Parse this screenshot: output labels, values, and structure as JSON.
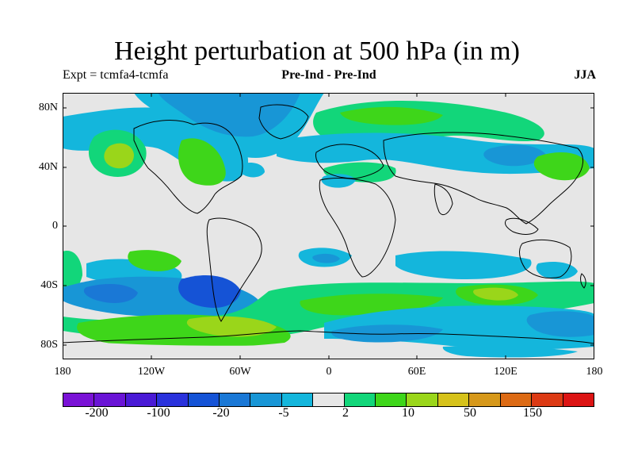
{
  "title": "Height perturbation at 500 hPa (in m)",
  "subtitle_left": "Expt = tcmfa4-tcmfa",
  "subtitle_center": "Pre-Ind - Pre-Ind",
  "subtitle_right": "JJA",
  "lat_labels": [
    "80N",
    "40N",
    "0",
    "40S",
    "80S"
  ],
  "lon_labels": [
    "180",
    "120W",
    "60W",
    "0",
    "60E",
    "120E",
    "180"
  ],
  "colorbar": {
    "colors": [
      "#7a12d6",
      "#6a14d6",
      "#4a1ad6",
      "#2a32dc",
      "#1553d6",
      "#1a78d6",
      "#1896d6",
      "#14b6dc",
      "#e6e6e6",
      "#12d67a",
      "#3ed61a",
      "#9ad61a",
      "#d6c21a",
      "#d6981a",
      "#dc6a14",
      "#dc3a14",
      "#dc1414"
    ],
    "labels": [
      "-200",
      "-100",
      "-20",
      "-5",
      "2",
      "10",
      "50",
      "150"
    ]
  },
  "fill_colors": {
    "neutral": "#e6e6e6",
    "neg_light": "#14b6dc",
    "neg_mid": "#1896d6",
    "neg_strong": "#1a78d6",
    "neg_stronger": "#1553d6",
    "pos_light": "#12d67a",
    "pos_mid": "#3ed61a",
    "pos_strong": "#9ad61a"
  }
}
